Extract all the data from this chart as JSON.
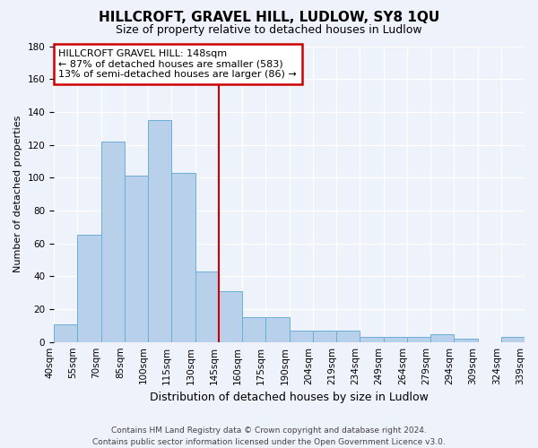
{
  "title": "HILLCROFT, GRAVEL HILL, LUDLOW, SY8 1QU",
  "subtitle": "Size of property relative to detached houses in Ludlow",
  "xlabel": "Distribution of detached houses by size in Ludlow",
  "ylabel": "Number of detached properties",
  "bin_labels": [
    "40sqm",
    "55sqm",
    "70sqm",
    "85sqm",
    "100sqm",
    "115sqm",
    "130sqm",
    "145sqm",
    "160sqm",
    "175sqm",
    "190sqm",
    "204sqm",
    "219sqm",
    "234sqm",
    "249sqm",
    "264sqm",
    "279sqm",
    "294sqm",
    "309sqm",
    "324sqm",
    "339sqm"
  ],
  "bar_values": [
    11,
    65,
    122,
    101,
    135,
    103,
    43,
    31,
    15,
    15,
    7,
    7,
    7,
    3,
    3,
    3,
    5,
    2,
    0,
    3
  ],
  "bar_color": "#b8d0ea",
  "bar_edge_color": "#6aaed6",
  "vline_x_index": 7,
  "vline_color": "#cc0000",
  "annotation_title": "HILLCROFT GRAVEL HILL: 148sqm",
  "annotation_line1": "← 87% of detached houses are smaller (583)",
  "annotation_line2": "13% of semi-detached houses are larger (86) →",
  "annotation_box_color": "#ffffff",
  "annotation_border_color": "#cc0000",
  "ylim": [
    0,
    180
  ],
  "yticks": [
    0,
    20,
    40,
    60,
    80,
    100,
    120,
    140,
    160,
    180
  ],
  "footer_line1": "Contains HM Land Registry data © Crown copyright and database right 2024.",
  "footer_line2": "Contains public sector information licensed under the Open Government Licence v3.0.",
  "background_color": "#eef2fa",
  "title_fontsize": 11,
  "subtitle_fontsize": 9,
  "ylabel_fontsize": 8,
  "xlabel_fontsize": 9,
  "tick_fontsize": 7.5,
  "footer_fontsize": 6.5
}
